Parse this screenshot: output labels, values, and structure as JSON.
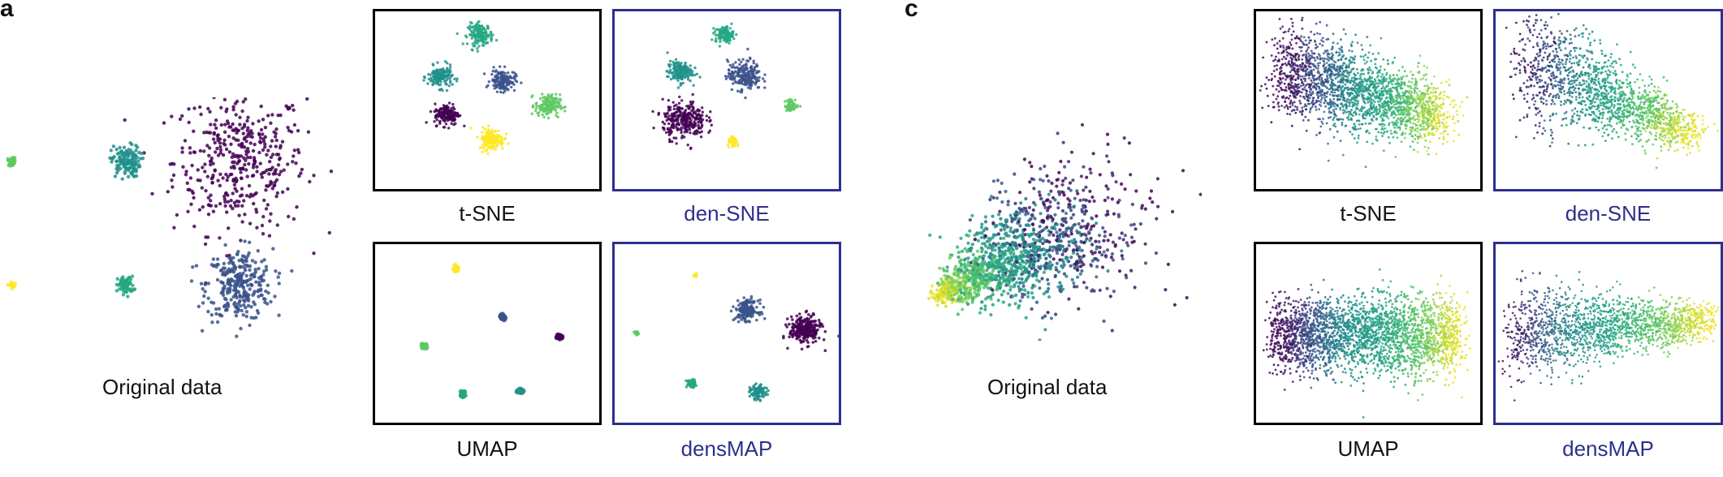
{
  "panels": {
    "a": {
      "letter": "a",
      "original_label": "Original data",
      "labels": {
        "tsne": "t-SNE",
        "densne": "den-SNE",
        "umap": "UMAP",
        "densmap": "densMAP"
      }
    },
    "c": {
      "letter": "c",
      "original_label": "Original data",
      "labels": {
        "tsne": "t-SNE",
        "densne": "den-SNE",
        "umap": "UMAP",
        "densmap": "densMAP"
      }
    }
  },
  "colors": {
    "frame_black": "#000000",
    "frame_blue": "#2e2f8e",
    "viridis": [
      "#440154",
      "#3b528b",
      "#21918c",
      "#26a784",
      "#5ec962",
      "#fde725"
    ]
  },
  "chart_data": [
    {
      "type": "scatter",
      "panel": "a",
      "name_plot": "original",
      "title": "",
      "clusters": [
        {
          "color": "#440154",
          "center": [
            0.0,
            0.0
          ],
          "spread": 1.0,
          "n": 420
        },
        {
          "color": "#3b528b",
          "center": [
            0.0,
            -1.45
          ],
          "spread": 0.5,
          "n": 300
        },
        {
          "color": "#21918c",
          "center": [
            -1.45,
            0.0
          ],
          "spread": 0.22,
          "n": 140
        },
        {
          "color": "#26a784",
          "center": [
            -1.45,
            -1.45
          ],
          "spread": 0.12,
          "n": 80
        },
        {
          "color": "#5ec962",
          "center": [
            -2.9,
            0.0
          ],
          "spread": 0.06,
          "n": 30
        },
        {
          "color": "#fde725",
          "center": [
            -2.9,
            -1.45
          ],
          "spread": 0.04,
          "n": 20
        }
      ]
    },
    {
      "type": "scatter",
      "panel": "a",
      "name_plot": "t-SNE",
      "clusters": [
        {
          "color": "#26a784",
          "center": [
            0.47,
            0.87
          ],
          "spread": 0.055,
          "n": 160
        },
        {
          "color": "#21918c",
          "center": [
            0.29,
            0.63
          ],
          "spread": 0.055,
          "n": 160
        },
        {
          "color": "#3b528b",
          "center": [
            0.57,
            0.61
          ],
          "spread": 0.055,
          "n": 160
        },
        {
          "color": "#5ec962",
          "center": [
            0.77,
            0.47
          ],
          "spread": 0.055,
          "n": 160
        },
        {
          "color": "#440154",
          "center": [
            0.32,
            0.42
          ],
          "spread": 0.055,
          "n": 160
        },
        {
          "color": "#fde725",
          "center": [
            0.52,
            0.28
          ],
          "spread": 0.055,
          "n": 160
        }
      ]
    },
    {
      "type": "scatter",
      "panel": "a",
      "name_plot": "den-SNE",
      "clusters": [
        {
          "color": "#26a784",
          "center": [
            0.49,
            0.87
          ],
          "spread": 0.04,
          "n": 120
        },
        {
          "color": "#21918c",
          "center": [
            0.29,
            0.66
          ],
          "spread": 0.055,
          "n": 160
        },
        {
          "color": "#3b528b",
          "center": [
            0.58,
            0.64
          ],
          "spread": 0.075,
          "n": 220
        },
        {
          "color": "#5ec962",
          "center": [
            0.79,
            0.47
          ],
          "spread": 0.03,
          "n": 60
        },
        {
          "color": "#440154",
          "center": [
            0.31,
            0.39
          ],
          "spread": 0.095,
          "n": 300
        },
        {
          "color": "#fde725",
          "center": [
            0.53,
            0.26
          ],
          "spread": 0.025,
          "n": 40
        }
      ]
    },
    {
      "type": "scatter",
      "panel": "a",
      "name_plot": "UMAP",
      "clusters": [
        {
          "color": "#fde725",
          "center": [
            0.36,
            0.86
          ],
          "spread": 0.012,
          "n": 25
        },
        {
          "color": "#3b528b",
          "center": [
            0.57,
            0.59
          ],
          "spread": 0.012,
          "n": 25
        },
        {
          "color": "#440154",
          "center": [
            0.82,
            0.48
          ],
          "spread": 0.012,
          "n": 25
        },
        {
          "color": "#5ec962",
          "center": [
            0.22,
            0.43
          ],
          "spread": 0.012,
          "n": 25
        },
        {
          "color": "#26a784",
          "center": [
            0.39,
            0.16
          ],
          "spread": 0.012,
          "n": 25
        },
        {
          "color": "#21918c",
          "center": [
            0.65,
            0.18
          ],
          "spread": 0.012,
          "n": 25
        }
      ]
    },
    {
      "type": "scatter",
      "panel": "a",
      "name_plot": "densMAP",
      "clusters": [
        {
          "color": "#fde725",
          "center": [
            0.36,
            0.83
          ],
          "spread": 0.01,
          "n": 15
        },
        {
          "color": "#3b528b",
          "center": [
            0.59,
            0.63
          ],
          "spread": 0.05,
          "n": 170
        },
        {
          "color": "#440154",
          "center": [
            0.85,
            0.52
          ],
          "spread": 0.07,
          "n": 260
        },
        {
          "color": "#5ec962",
          "center": [
            0.1,
            0.5
          ],
          "spread": 0.012,
          "n": 20
        },
        {
          "color": "#26a784",
          "center": [
            0.34,
            0.22
          ],
          "spread": 0.02,
          "n": 50
        },
        {
          "color": "#21918c",
          "center": [
            0.64,
            0.17
          ],
          "spread": 0.035,
          "n": 100
        }
      ]
    },
    {
      "type": "scatter",
      "panel": "c",
      "name_plot": "original",
      "description_shape": "continuous gradient, dense yellow tip at left expanding to sparse purple at right"
    },
    {
      "type": "scatter",
      "panel": "c",
      "name_plot": "t-SNE"
    },
    {
      "type": "scatter",
      "panel": "c",
      "name_plot": "den-SNE"
    },
    {
      "type": "scatter",
      "panel": "c",
      "name_plot": "UMAP"
    },
    {
      "type": "scatter",
      "panel": "c",
      "name_plot": "densMAP"
    }
  ]
}
